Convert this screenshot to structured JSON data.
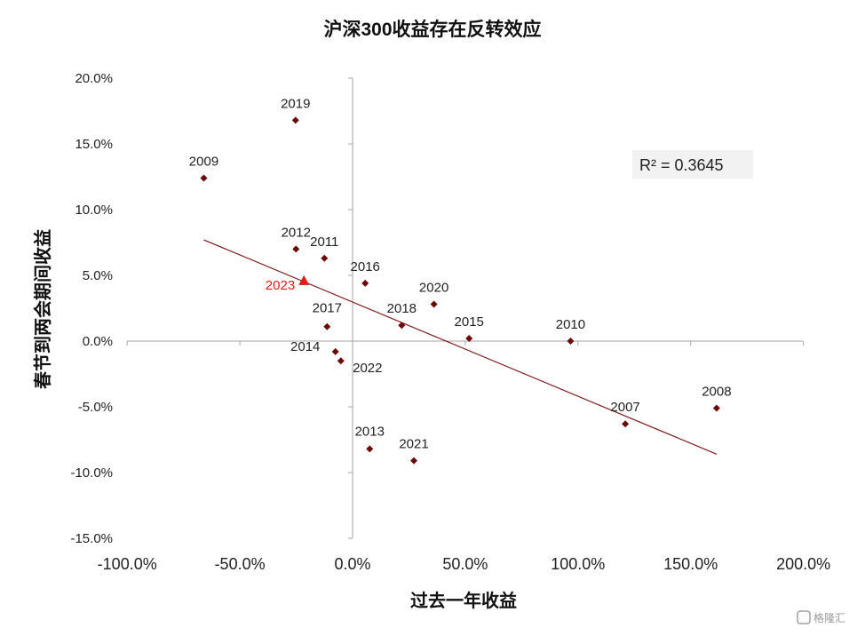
{
  "chart_data": {
    "type": "scatter",
    "title": "沪深300收益存在反转效应",
    "xlabel": "过去一年收益",
    "ylabel": "春节到两会期间收益",
    "xlim": [
      -100,
      200
    ],
    "ylim": [
      -15,
      20
    ],
    "x_ticks": [
      -100,
      -50,
      0,
      50,
      100,
      150,
      200
    ],
    "y_ticks": [
      -15,
      -10,
      -5,
      0,
      5,
      10,
      15,
      20
    ],
    "x_tick_labels": [
      "-100.0%",
      "-50.0%",
      "0.0%",
      "50.0%",
      "100.0%",
      "150.0%",
      "200.0%"
    ],
    "y_tick_labels": [
      "-15.0%",
      "-10.0%",
      "-5.0%",
      "0.0%",
      "5.0%",
      "10.0%",
      "15.0%",
      "20.0%"
    ],
    "points": [
      {
        "label": "2019",
        "x": -25.3,
        "y": 16.8
      },
      {
        "label": "2009",
        "x": -66.0,
        "y": 12.4
      },
      {
        "label": "2012",
        "x": -25.1,
        "y": 7.0
      },
      {
        "label": "2011",
        "x": -12.5,
        "y": 6.3
      },
      {
        "label": "2016",
        "x": 5.6,
        "y": 4.4
      },
      {
        "label": "2020",
        "x": 36.1,
        "y": 2.8
      },
      {
        "label": "2018",
        "x": 21.8,
        "y": 1.2
      },
      {
        "label": "2017",
        "x": -11.3,
        "y": 1.1
      },
      {
        "label": "2015",
        "x": 51.7,
        "y": 0.2
      },
      {
        "label": "2010",
        "x": 96.7,
        "y": 0.0
      },
      {
        "label": "2014",
        "x": -7.6,
        "y": -0.8
      },
      {
        "label": "2022",
        "x": -5.2,
        "y": -1.5
      },
      {
        "label": "2008",
        "x": 161.5,
        "y": -5.1
      },
      {
        "label": "2007",
        "x": 121.0,
        "y": -6.3
      },
      {
        "label": "2013",
        "x": 7.6,
        "y": -8.2
      },
      {
        "label": "2021",
        "x": 27.2,
        "y": -9.1
      }
    ],
    "highlight_point": {
      "label": "2023",
      "x": -21.6,
      "y": 4.6,
      "color": "#e31a1a"
    },
    "trendline": {
      "x0": -66.0,
      "y0": 7.7,
      "x1": 161.5,
      "y1": -8.6
    },
    "annotation": "R² = 0.3645",
    "grid": false,
    "colors": {
      "marker": "#6b0a0a",
      "trendline": "#7a1c1c",
      "highlight": "#e31a1a",
      "axis": "#a6a6a6"
    }
  },
  "watermark": "格隆汇"
}
